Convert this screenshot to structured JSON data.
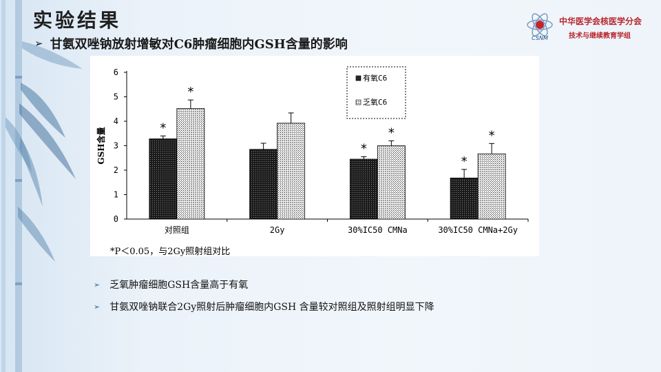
{
  "slide": {
    "title": "实验结果",
    "subtitle": "甘氨双唑钠放射增敏对C6肿瘤细胞内GSH含量的影响",
    "subtitle_marker": "➢"
  },
  "logo": {
    "icon": "csnm-atom-logo-icon",
    "line1": "中华医学会核医学分会",
    "line2": "技术与继续教育学组",
    "mark_text": "CSNM"
  },
  "chart_data": {
    "type": "bar",
    "ylabel": "GSH含量",
    "xlabel": "",
    "ylim": [
      0,
      6
    ],
    "yticks": [
      "0",
      "1",
      "2",
      "3",
      "4",
      "5",
      "6"
    ],
    "categories": [
      "对照组",
      "2Gy",
      "30%IC50 CMNa",
      "30%IC50 CMNa+2Gy"
    ],
    "series": [
      {
        "name": "有氧C6",
        "values": [
          3.28,
          2.85,
          2.45,
          1.68
        ],
        "errors": [
          0.12,
          0.25,
          0.1,
          0.35
        ],
        "pattern": "dark-dots"
      },
      {
        "name": "乏氧C6",
        "values": [
          4.52,
          3.92,
          3.0,
          2.67
        ],
        "errors": [
          0.35,
          0.42,
          0.2,
          0.42
        ],
        "pattern": "light-dots"
      }
    ],
    "significance": [
      {
        "category": 0,
        "series": 0,
        "mark": "*"
      },
      {
        "category": 0,
        "series": 1,
        "mark": "*"
      },
      {
        "category": 2,
        "series": 0,
        "mark": "*"
      },
      {
        "category": 2,
        "series": 1,
        "mark": "*"
      },
      {
        "category": 3,
        "series": 0,
        "mark": "*"
      },
      {
        "category": 3,
        "series": 1,
        "mark": "*"
      }
    ],
    "legend_position": "top-center",
    "footnote": "*P＜0.05，与2Gy照射组对比",
    "grid": false
  },
  "bullets": [
    {
      "text": "乏氧肿瘤细胞GSH含量高于有氧"
    },
    {
      "text": "甘氨双唑钠联合2Gy照射后肿瘤细胞内GSH 含量较对照组及照射组明显下降"
    }
  ],
  "bullet_marker": "➢"
}
